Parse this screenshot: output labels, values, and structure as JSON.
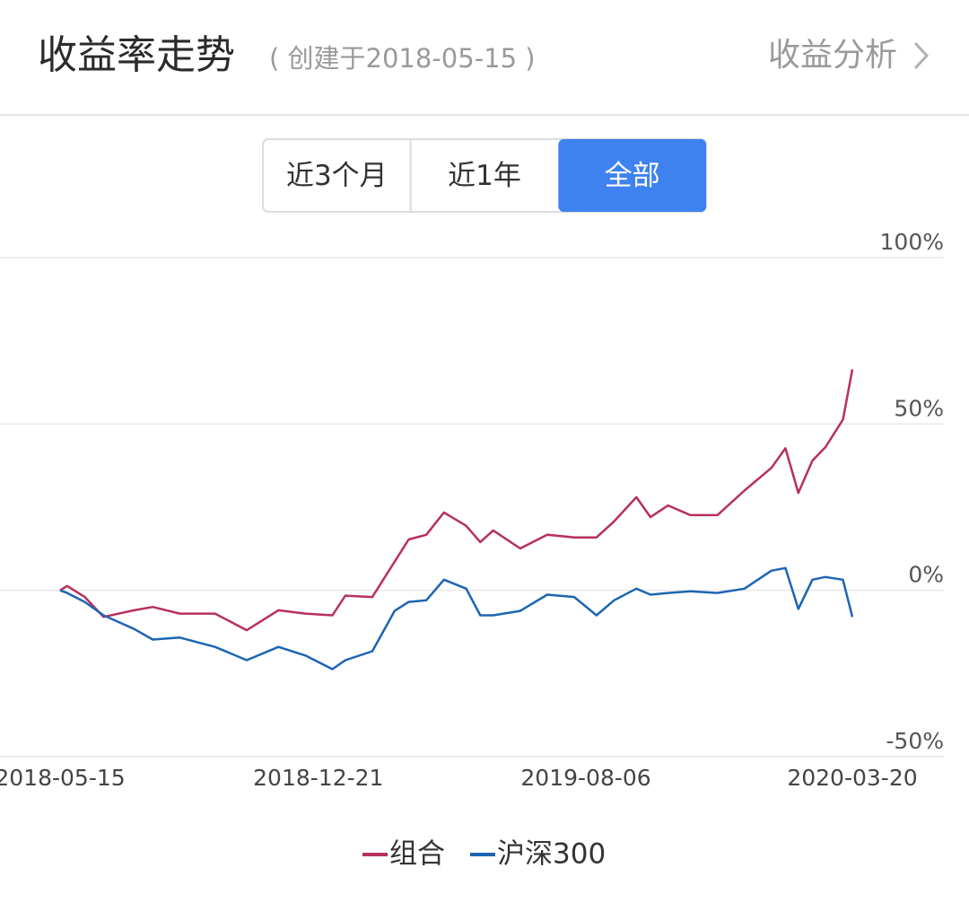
{
  "header": {
    "title": "收益率走势",
    "subtitle": "( 创建于2018-05-15 )",
    "link": "收益分析"
  },
  "tabs": [
    {
      "label": "近3个月",
      "selected": false
    },
    {
      "label": "近1年",
      "selected": false
    },
    {
      "label": "全部",
      "selected": true
    }
  ],
  "chart_data": {
    "type": "line",
    "x": [
      "2018-05-15",
      "2018-05-21",
      "2018-06-05",
      "2018-06-21",
      "2018-07-17",
      "2018-08-02",
      "2018-08-25",
      "2018-09-24",
      "2018-10-21",
      "2018-11-17",
      "2018-12-10",
      "2019-01-02",
      "2019-01-13",
      "2019-02-05",
      "2019-02-24",
      "2019-03-08",
      "2019-03-23",
      "2019-04-07",
      "2019-04-26",
      "2019-05-08",
      "2019-05-19",
      "2019-06-11",
      "2019-07-04",
      "2019-07-27",
      "2019-08-15",
      "2019-08-30",
      "2019-09-18",
      "2019-09-30",
      "2019-10-15",
      "2019-11-03",
      "2019-11-26",
      "2019-12-19",
      "2020-01-11",
      "2020-01-23",
      "2020-02-03",
      "2020-02-15",
      "2020-02-26",
      "2020-03-12",
      "2020-03-20"
    ],
    "series": [
      {
        "name": "组合",
        "color": "#b8305b",
        "values": [
          0,
          1.3,
          -2,
          -8,
          -6,
          -5,
          -7,
          -7,
          -12,
          -6,
          -7,
          -7.5,
          -1.6,
          -2,
          8.6,
          15.3,
          16.7,
          23.4,
          19.4,
          14.5,
          18,
          12.6,
          16.7,
          15.9,
          15.9,
          20.7,
          28,
          22,
          25.5,
          22.6,
          22.6,
          30,
          36.8,
          42.7,
          29.3,
          39,
          43,
          51.3,
          66.4
        ]
      },
      {
        "name": "沪深300",
        "color": "#1c65b3",
        "values": [
          0,
          -0.8,
          -3.5,
          -7.5,
          -11.6,
          -14.8,
          -14.2,
          -17,
          -21,
          -17,
          -19.6,
          -23.7,
          -21,
          -18.3,
          -6.2,
          -3.5,
          -3,
          3.2,
          0.5,
          -7.5,
          -7.5,
          -6.2,
          -1.3,
          -2,
          -7.5,
          -3,
          0.5,
          -1.3,
          -0.8,
          -0.3,
          -0.8,
          0.5,
          5.9,
          6.7,
          -5.6,
          3.2,
          4,
          3.2,
          -8
        ]
      }
    ],
    "xlim": [
      "2018-05-15",
      "2020-03-20"
    ],
    "xticks": [
      "2018-05-15",
      "2018-12-21",
      "2019-08-06",
      "2020-03-20"
    ],
    "ylim": [
      -50,
      100
    ],
    "yticks": [
      {
        "value": -50,
        "label": "-50%"
      },
      {
        "value": 0,
        "label": "0%"
      },
      {
        "value": 50,
        "label": "50%"
      },
      {
        "value": 100,
        "label": "100%"
      }
    ],
    "grid": true
  }
}
